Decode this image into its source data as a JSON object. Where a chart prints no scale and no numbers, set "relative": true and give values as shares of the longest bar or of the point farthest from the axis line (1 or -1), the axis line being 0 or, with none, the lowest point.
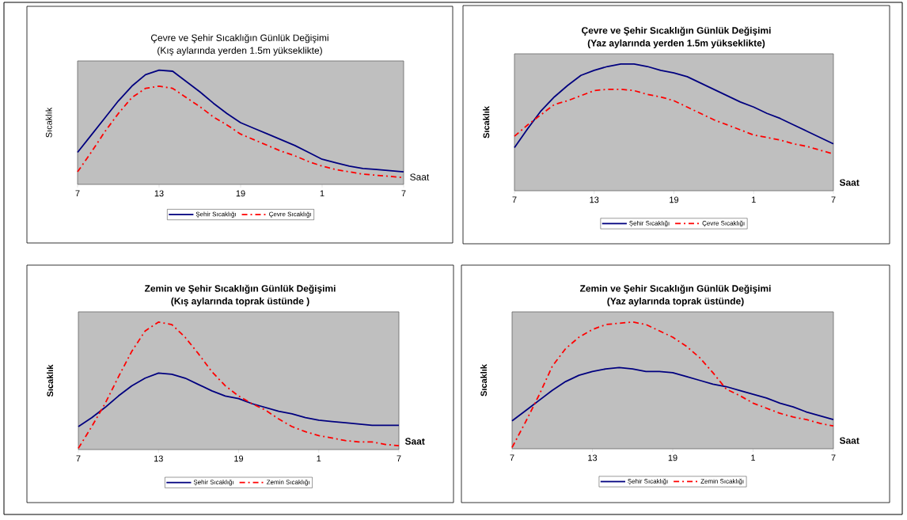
{
  "chart_data": [
    {
      "type": "line",
      "title": "Çevre ve Şehir Sıcaklığın Günlük Değişimi",
      "subtitle": "(Kış aylarında yerden 1.5m yükseklikte)",
      "xlabel": "Saat",
      "ylabel": "Sıcaklık",
      "relative": true,
      "legend": "bottom",
      "categories": [
        "7",
        null,
        null,
        null,
        null,
        null,
        "13",
        null,
        null,
        null,
        null,
        null,
        "19",
        null,
        null,
        null,
        null,
        null,
        "1",
        null,
        null,
        null,
        null,
        null,
        "7"
      ],
      "series": [
        {
          "name": "Şehir Sıcaklığı",
          "color": "#00007f",
          "line_style": "solid",
          "values": [
            0.28,
            0.43,
            0.58,
            0.73,
            0.86,
            0.96,
            1.0,
            0.99,
            0.9,
            0.81,
            0.71,
            0.62,
            0.54,
            0.49,
            0.44,
            0.39,
            0.34,
            0.28,
            0.22,
            0.19,
            0.16,
            0.14,
            0.13,
            0.12,
            0.11
          ]
        },
        {
          "name": "Çevre Sıcaklığı",
          "color": "#ff0000",
          "line_style": "dashed",
          "values": [
            0.11,
            0.28,
            0.46,
            0.62,
            0.76,
            0.84,
            0.86,
            0.84,
            0.76,
            0.68,
            0.59,
            0.52,
            0.44,
            0.39,
            0.34,
            0.29,
            0.25,
            0.2,
            0.16,
            0.13,
            0.11,
            0.09,
            0.08,
            0.07,
            0.06
          ]
        }
      ]
    },
    {
      "type": "line",
      "title": "Çevre ve Şehir Sıcaklığın Günlük Değişimi",
      "subtitle": "(Yaz aylarında yerden 1.5m yükseklikte)",
      "xlabel": "Saat",
      "ylabel": "Sıcaklık",
      "relative": true,
      "legend": "bottom",
      "categories": [
        "7",
        null,
        null,
        null,
        null,
        null,
        "13",
        null,
        null,
        null,
        null,
        null,
        "19",
        null,
        null,
        null,
        null,
        null,
        "1",
        null,
        null,
        null,
        null,
        null,
        "7"
      ],
      "series": [
        {
          "name": "Şehir Sıcaklığı",
          "color": "#00007f",
          "line_style": "solid",
          "values": [
            0.34,
            0.49,
            0.63,
            0.74,
            0.83,
            0.91,
            0.95,
            0.98,
            1.0,
            1.0,
            0.98,
            0.95,
            0.93,
            0.9,
            0.85,
            0.8,
            0.75,
            0.7,
            0.66,
            0.61,
            0.57,
            0.52,
            0.47,
            0.42,
            0.37
          ]
        },
        {
          "name": "Çevre Sıcaklığı",
          "color": "#ff0000",
          "line_style": "dashed",
          "values": [
            0.43,
            0.52,
            0.6,
            0.68,
            0.71,
            0.75,
            0.79,
            0.8,
            0.8,
            0.79,
            0.76,
            0.74,
            0.71,
            0.66,
            0.61,
            0.56,
            0.52,
            0.48,
            0.44,
            0.42,
            0.4,
            0.37,
            0.35,
            0.32,
            0.29
          ]
        }
      ]
    },
    {
      "type": "line",
      "title": "Zemin ve Şehir Sıcaklığın Günlük Değişimi",
      "subtitle": "(Kış aylarında toprak üstünde )",
      "xlabel": "Saat",
      "ylabel": "Sıcaklık",
      "relative": true,
      "legend": "bottom",
      "categories": [
        "7",
        null,
        null,
        null,
        null,
        null,
        "13",
        null,
        null,
        null,
        null,
        null,
        "19",
        null,
        null,
        null,
        null,
        null,
        "1",
        null,
        null,
        null,
        null,
        null,
        "7"
      ],
      "series": [
        {
          "name": "Şehir Sıcaklığı",
          "color": "#00007f",
          "line_style": "solid",
          "values": [
            0.18,
            0.25,
            0.33,
            0.42,
            0.5,
            0.56,
            0.6,
            0.59,
            0.56,
            0.51,
            0.46,
            0.42,
            0.4,
            0.36,
            0.33,
            0.3,
            0.28,
            0.25,
            0.23,
            0.22,
            0.21,
            0.2,
            0.19,
            0.19,
            0.19
          ]
        },
        {
          "name": "Zemin Sıcaklığı",
          "color": "#ff0000",
          "line_style": "dashed",
          "values": [
            0.01,
            0.18,
            0.36,
            0.57,
            0.77,
            0.93,
            1.0,
            0.98,
            0.88,
            0.75,
            0.61,
            0.5,
            0.42,
            0.36,
            0.31,
            0.24,
            0.18,
            0.14,
            0.11,
            0.09,
            0.07,
            0.06,
            0.06,
            0.04,
            0.03
          ]
        }
      ]
    },
    {
      "type": "line",
      "title": "Zemin ve Şehir Sıcaklığın Günlük Değişimi",
      "subtitle": "(Yaz aylarında toprak üstünde)",
      "xlabel": "Saat",
      "ylabel": "Sıcaklık",
      "relative": true,
      "legend": "bottom",
      "categories": [
        "7",
        null,
        null,
        null,
        null,
        null,
        "13",
        null,
        null,
        null,
        null,
        null,
        "19",
        null,
        null,
        null,
        null,
        null,
        "1",
        null,
        null,
        null,
        null,
        null,
        "7"
      ],
      "series": [
        {
          "name": "Şehir Sıcaklığı",
          "color": "#00007f",
          "line_style": "solid",
          "values": [
            0.22,
            0.3,
            0.38,
            0.46,
            0.53,
            0.58,
            0.61,
            0.63,
            0.64,
            0.63,
            0.61,
            0.61,
            0.6,
            0.57,
            0.54,
            0.51,
            0.49,
            0.46,
            0.43,
            0.4,
            0.36,
            0.33,
            0.29,
            0.26,
            0.23
          ]
        },
        {
          "name": "Zemin Sıcaklığı",
          "color": "#ff0000",
          "line_style": "dashed",
          "values": [
            0.01,
            0.21,
            0.42,
            0.65,
            0.79,
            0.88,
            0.94,
            0.98,
            0.99,
            1.0,
            0.98,
            0.93,
            0.88,
            0.81,
            0.72,
            0.6,
            0.47,
            0.42,
            0.36,
            0.32,
            0.28,
            0.25,
            0.23,
            0.2,
            0.18
          ]
        }
      ]
    }
  ]
}
